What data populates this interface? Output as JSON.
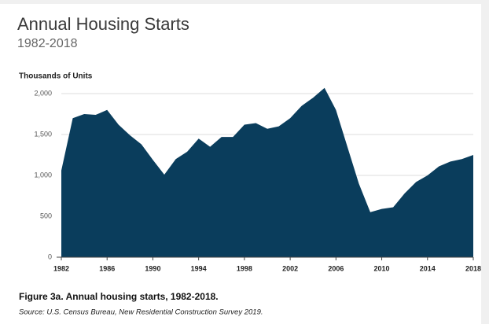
{
  "chart_data": {
    "type": "area",
    "title": "Annual Housing Starts",
    "subtitle": "1982-2018",
    "y_label": "Thousands of Units",
    "caption": "Figure 3a. Annual housing starts, 1982-2018.",
    "source": "Source: U.S. Census Bureau, New Residential Construction Survey 2019.",
    "x": [
      1982,
      1983,
      1984,
      1985,
      1986,
      1987,
      1988,
      1989,
      1990,
      1991,
      1992,
      1993,
      1994,
      1995,
      1996,
      1997,
      1998,
      1999,
      2000,
      2001,
      2002,
      2003,
      2004,
      2005,
      2006,
      2007,
      2008,
      2009,
      2010,
      2011,
      2012,
      2013,
      2014,
      2015,
      2016,
      2017,
      2018
    ],
    "values": [
      1060,
      1700,
      1750,
      1740,
      1800,
      1620,
      1490,
      1380,
      1190,
      1010,
      1200,
      1290,
      1450,
      1350,
      1470,
      1470,
      1620,
      1640,
      1570,
      1600,
      1700,
      1850,
      1950,
      2070,
      1800,
      1350,
      900,
      550,
      590,
      610,
      780,
      920,
      1000,
      1110,
      1170,
      1200,
      1250
    ],
    "color": "#0a3d5c",
    "xlim": [
      1982,
      2018
    ],
    "xticks": [
      1982,
      1986,
      1990,
      1994,
      1998,
      2002,
      2006,
      2010,
      2014,
      2018
    ],
    "ylim": [
      0,
      2000
    ],
    "yticks": [
      0,
      500,
      {
        "value": 1000,
        "label": "1,000"
      },
      {
        "value": 1500,
        "label": "1,500"
      },
      {
        "value": 2000,
        "label": "2,000"
      }
    ],
    "grid": true
  }
}
